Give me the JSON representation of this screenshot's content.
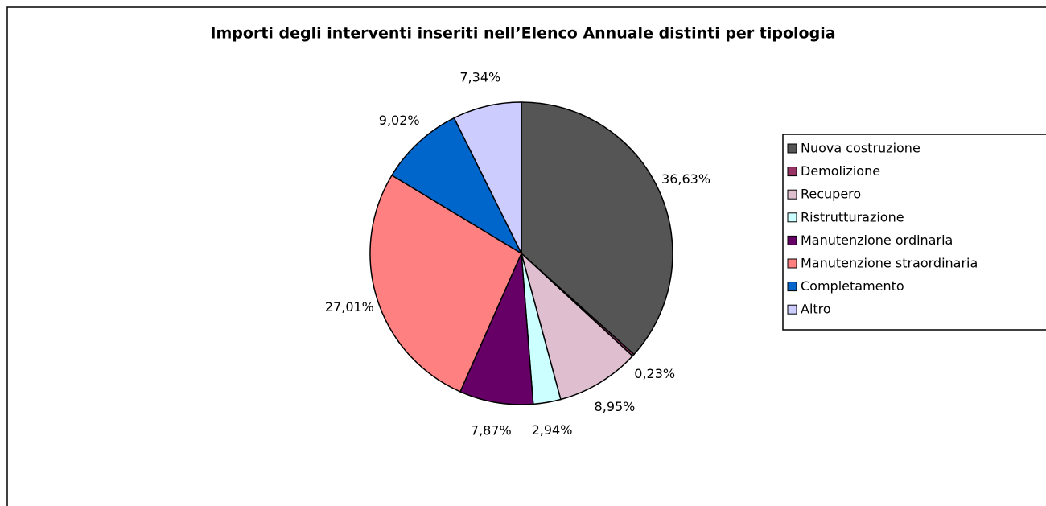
{
  "chart_data": {
    "type": "pie",
    "title": "Importi degli interventi inseriti nell’Elenco Annuale distinti per tipologia",
    "categories": [
      "Nuova costruzione",
      "Demolizione",
      "Recupero",
      "Ristrutturazione",
      "Manutenzione ordinaria",
      "Manutenzione straordinaria",
      "Completamento",
      "Altro"
    ],
    "values": [
      36.63,
      0.23,
      8.95,
      2.94,
      7.87,
      27.01,
      9.02,
      7.34
    ],
    "value_labels": [
      "36,63%",
      "0,23%",
      "8,95%",
      "2,94%",
      "7,87%",
      "27,01%",
      "9,02%",
      "7,34%"
    ],
    "colors": [
      "#555555",
      "#993366",
      "#dfbfcf",
      "#ccffff",
      "#660066",
      "#ff8080",
      "#0066cc",
      "#ccccff"
    ],
    "legend": "right"
  }
}
